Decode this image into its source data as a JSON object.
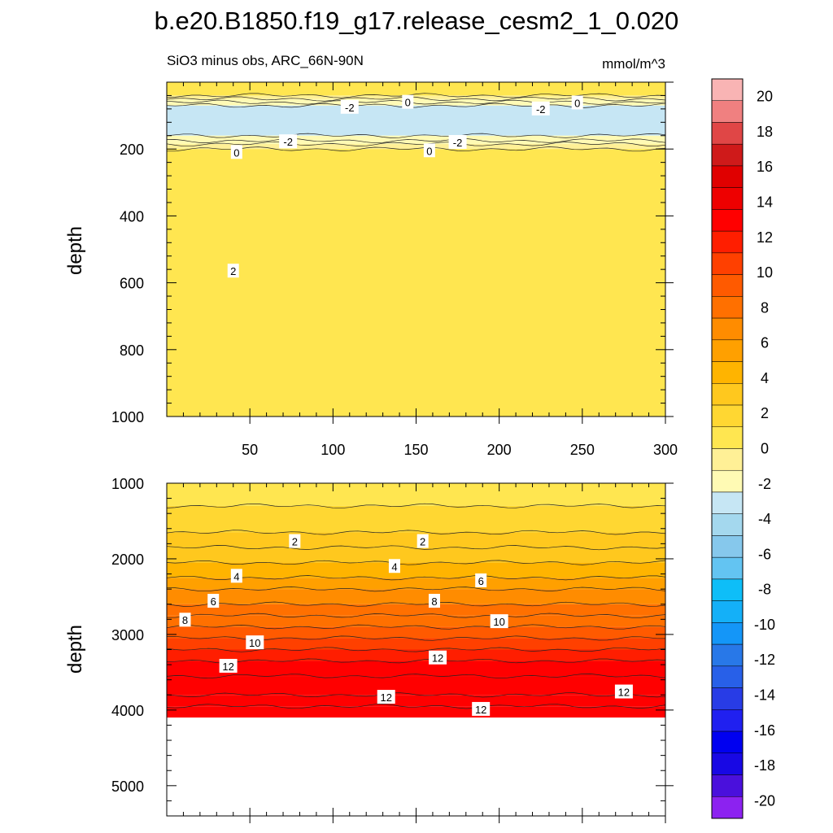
{
  "figure": {
    "title": "b.e20.B1850.f19_g17.release_cesm2_1_0.020",
    "left_subtitle": "SiO3 minus obs, ARC_66N-90N",
    "right_subtitle": "mmol/m^3"
  },
  "chart_data": [
    {
      "type": "heatmap",
      "panel": "upper",
      "title": "SiO3 minus obs, ARC_66N-90N",
      "xlabel": "",
      "ylabel": "depth",
      "units": "mmol/m^3",
      "xlim": [
        0,
        300
      ],
      "ylim": [
        1000,
        0
      ],
      "x_ticks": [
        50,
        100,
        150,
        200,
        250,
        300
      ],
      "y_ticks": [
        200,
        400,
        600,
        800,
        1000
      ],
      "bands": [
        {
          "from": 0,
          "to": 40,
          "value": 1
        },
        {
          "from": 40,
          "to": 50,
          "value": -0.5
        },
        {
          "from": 50,
          "to": 60,
          "value": -1.5
        },
        {
          "from": 60,
          "to": 70,
          "value": -2.5
        },
        {
          "from": 70,
          "to": 160,
          "value": -3.5
        },
        {
          "from": 160,
          "to": 175,
          "value": -2.5
        },
        {
          "from": 175,
          "to": 185,
          "value": -1.5
        },
        {
          "from": 185,
          "to": 200,
          "value": -0.5
        },
        {
          "from": 200,
          "to": 1000,
          "value": 1
        }
      ],
      "contour_labels": [
        {
          "text": "-2",
          "x": 110,
          "y": 75
        },
        {
          "text": "0",
          "x": 145,
          "y": 60
        },
        {
          "text": "-2",
          "x": 225,
          "y": 80
        },
        {
          "text": "0",
          "x": 247,
          "y": 62
        },
        {
          "text": "-2",
          "x": 73,
          "y": 178
        },
        {
          "text": "-2",
          "x": 175,
          "y": 180
        },
        {
          "text": "0",
          "x": 42,
          "y": 210
        },
        {
          "text": "0",
          "x": 158,
          "y": 205
        },
        {
          "text": "2",
          "x": 40,
          "y": 565
        }
      ]
    },
    {
      "type": "heatmap",
      "panel": "lower",
      "xlabel": "",
      "ylabel": "depth",
      "units": "mmol/m^3",
      "xlim": [
        0,
        300
      ],
      "ylim": [
        5400,
        1000
      ],
      "data_bottom_depth": 4100,
      "y_ticks": [
        1000,
        2000,
        3000,
        4000,
        5000
      ],
      "bands": [
        {
          "from": 1000,
          "to": 1300,
          "value": 0.5
        },
        {
          "from": 1300,
          "to": 1650,
          "value": 1.5
        },
        {
          "from": 1650,
          "to": 1850,
          "value": 2.5
        },
        {
          "from": 1850,
          "to": 2050,
          "value": 3.5
        },
        {
          "from": 2050,
          "to": 2250,
          "value": 4.5
        },
        {
          "from": 2250,
          "to": 2400,
          "value": 5.5
        },
        {
          "from": 2400,
          "to": 2600,
          "value": 6.5
        },
        {
          "from": 2600,
          "to": 2750,
          "value": 7.5
        },
        {
          "from": 2750,
          "to": 2900,
          "value": 8.5
        },
        {
          "from": 2900,
          "to": 3050,
          "value": 9.5
        },
        {
          "from": 3050,
          "to": 3200,
          "value": 10.5
        },
        {
          "from": 3200,
          "to": 3350,
          "value": 11.5
        },
        {
          "from": 3350,
          "to": 3550,
          "value": 12.5
        },
        {
          "from": 3550,
          "to": 3800,
          "value": 13.5
        },
        {
          "from": 3800,
          "to": 3950,
          "value": 12.5
        },
        {
          "from": 3950,
          "to": 4100,
          "value": 13.5
        }
      ],
      "contour_labels": [
        {
          "text": "2",
          "x": 77,
          "y": 1770
        },
        {
          "text": "2",
          "x": 154,
          "y": 1770
        },
        {
          "text": "4",
          "x": 42,
          "y": 2230
        },
        {
          "text": "4",
          "x": 137,
          "y": 2100
        },
        {
          "text": "6",
          "x": 28,
          "y": 2560
        },
        {
          "text": "6",
          "x": 189,
          "y": 2290
        },
        {
          "text": "8",
          "x": 11,
          "y": 2810
        },
        {
          "text": "8",
          "x": 161,
          "y": 2560
        },
        {
          "text": "10",
          "x": 53,
          "y": 3110
        },
        {
          "text": "10",
          "x": 200,
          "y": 2830
        },
        {
          "text": "12",
          "x": 37,
          "y": 3420
        },
        {
          "text": "12",
          "x": 163,
          "y": 3310
        },
        {
          "text": "12",
          "x": 132,
          "y": 3830
        },
        {
          "text": "12",
          "x": 189,
          "y": 3990
        },
        {
          "text": "12",
          "x": 275,
          "y": 3760
        }
      ]
    }
  ],
  "colorbar": {
    "labels": [
      "20",
      "18",
      "16",
      "14",
      "12",
      "10",
      "8",
      "6",
      "4",
      "2",
      "0",
      "-2",
      "-4",
      "-6",
      "-8",
      "-10",
      "-12",
      "-14",
      "-16",
      "-18",
      "-20"
    ],
    "colors_top_to_bottom": [
      "#f9b4b4",
      "#f08080",
      "#e04646",
      "#cf1a1a",
      "#e00000",
      "#ee0000",
      "#ff0000",
      "#ff1e00",
      "#ff4000",
      "#ff5a00",
      "#ff7000",
      "#ff8c00",
      "#ffa000",
      "#ffb400",
      "#ffc81e",
      "#ffd732",
      "#ffe650",
      "#fff096",
      "#fffab4",
      "#c6e6f4",
      "#a4d8ee",
      "#86c8ec",
      "#63c4f2",
      "#0ebef8",
      "#14b0f8",
      "#1496f8",
      "#2878e8",
      "#2860e8",
      "#283ce6",
      "#2020f0",
      "#0000f0",
      "#1808e4",
      "#4a10dc",
      "#8c22f0"
    ]
  }
}
